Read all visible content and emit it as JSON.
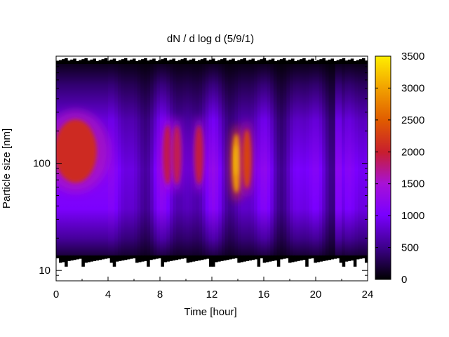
{
  "chart_data": {
    "type": "heatmap",
    "title": "dN / d log d (5/9/1)",
    "xlabel": "Time [hour]",
    "ylabel": "Particle size [nm]",
    "x_range": [
      0,
      24
    ],
    "x_ticks": [
      0,
      4,
      8,
      12,
      16,
      20,
      24
    ],
    "y_scale": "log",
    "y_range": [
      8,
      1000
    ],
    "y_ticks": [
      10,
      100
    ],
    "data_size_range": [
      13,
      900
    ],
    "colorbar": {
      "range": [
        0,
        3500
      ],
      "ticks": [
        0,
        500,
        1000,
        1500,
        2000,
        2500,
        3000,
        3500
      ],
      "colormap": "gnuplot (black-purple-red-orange-yellow)"
    },
    "grid": false,
    "features": [
      {
        "time_hour": 1.5,
        "size_nm": 130,
        "peak_value": 2100,
        "description": "broad early mode"
      },
      {
        "time_hour": 8.6,
        "size_nm": 120,
        "peak_value": 2000,
        "description": "narrow burst"
      },
      {
        "time_hour": 9.3,
        "size_nm": 120,
        "peak_value": 1900,
        "description": "narrow burst"
      },
      {
        "time_hour": 11.0,
        "size_nm": 120,
        "peak_value": 1950,
        "description": "narrow burst"
      },
      {
        "time_hour": 13.9,
        "size_nm": 100,
        "peak_value": 3000,
        "description": "strongest burst"
      },
      {
        "time_hour": 14.7,
        "size_nm": 110,
        "peak_value": 2300,
        "description": "burst"
      }
    ]
  }
}
